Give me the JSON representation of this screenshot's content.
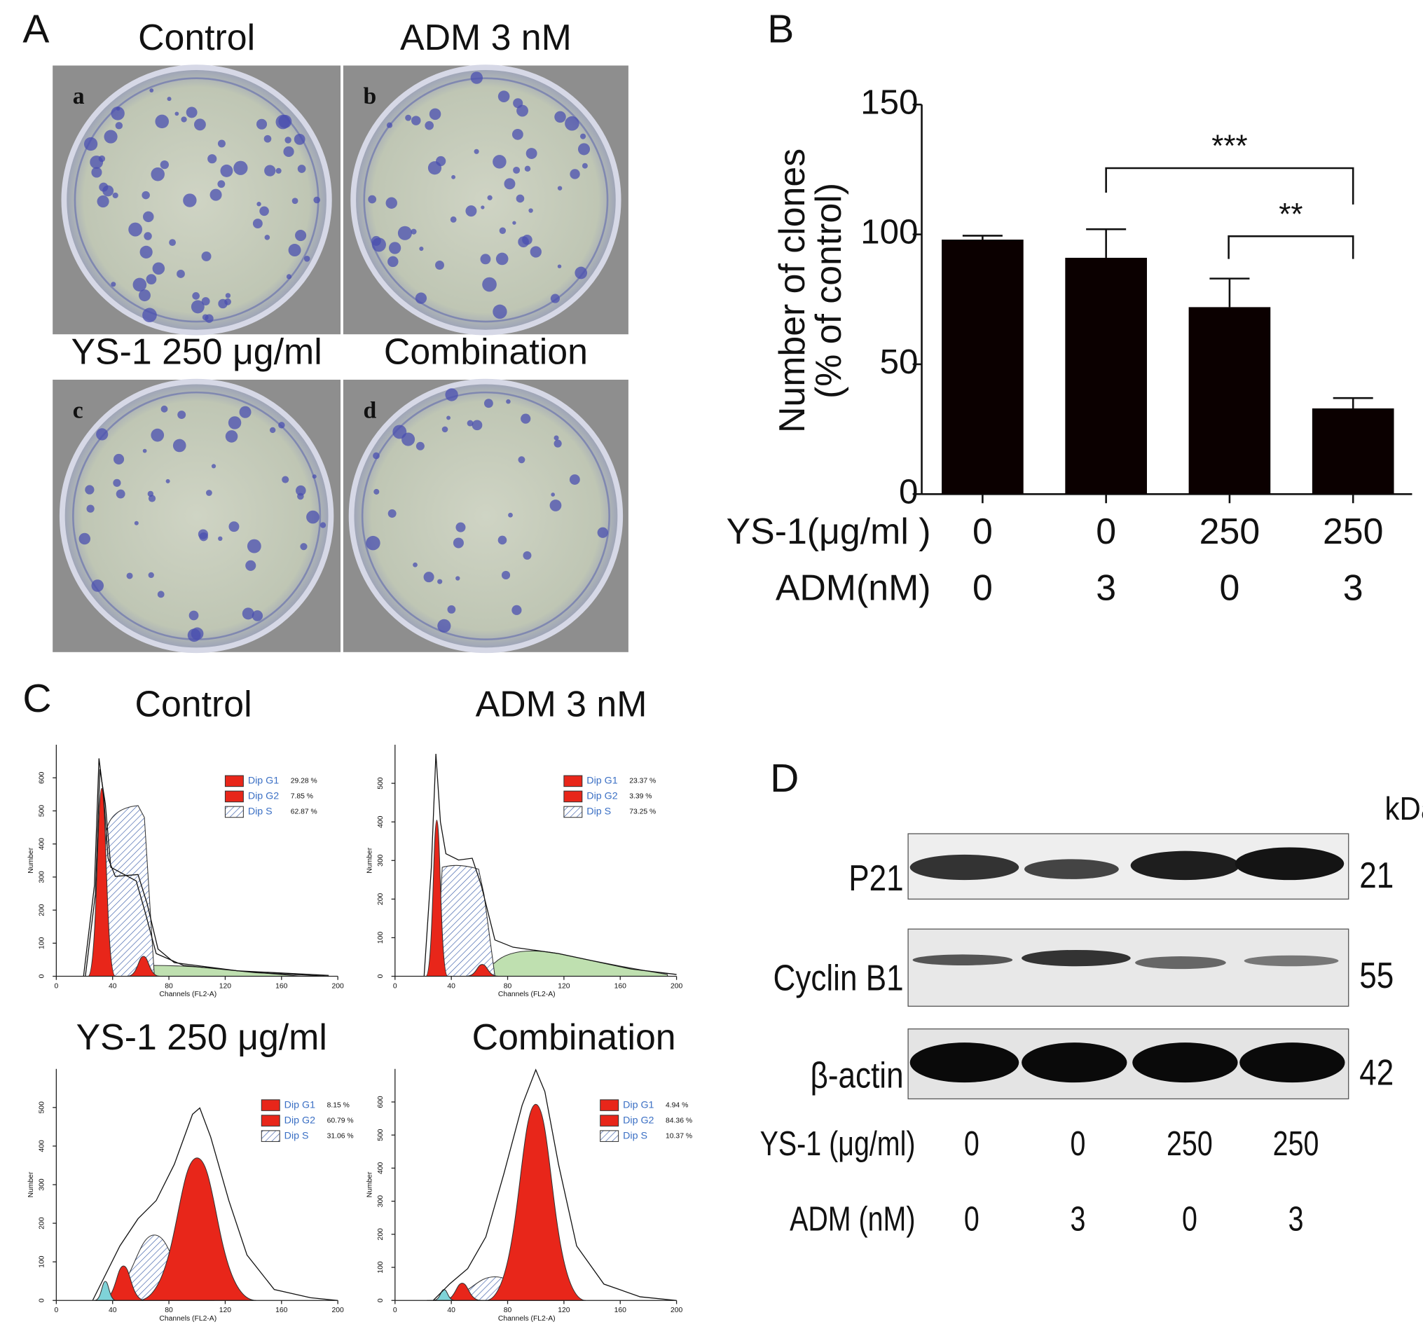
{
  "panel_labels": [
    "A",
    "B",
    "C",
    "D"
  ],
  "colony": {
    "titles": [
      "Control",
      "ADM 3 nM",
      "YS-1 250 μg/ml",
      "Combination"
    ],
    "letters": [
      "a",
      "b",
      "c",
      "d"
    ]
  },
  "chart_data": [
    {
      "type": "bar",
      "ylabel": [
        "Number of clones",
        "(% of control)"
      ],
      "category_rows": [
        {
          "name": "YS-1(μg/ml )",
          "labels": [
            "0",
            "0",
            "250",
            "250"
          ]
        },
        {
          "name": "ADM(nM)",
          "labels": [
            "0",
            "3",
            "0",
            "3"
          ]
        }
      ],
      "values": [
        98,
        91,
        72,
        33
      ],
      "errors": [
        1.5,
        11,
        11,
        4
      ],
      "color": "#0b0000",
      "ylim": [
        0,
        150
      ],
      "yticks": [
        0,
        50,
        100,
        150
      ],
      "annotations": [
        "***",
        "**"
      ]
    },
    {
      "type": "flow-histogram",
      "title": "Control",
      "xlabel": "Channels (FL2-A)",
      "ylabel": "Number",
      "xlim": [
        0,
        200
      ],
      "xticks": [
        0,
        40,
        80,
        120,
        160,
        200
      ],
      "ylim": [
        0,
        700
      ],
      "yticks": [
        0,
        100,
        200,
        300,
        400,
        500,
        600
      ],
      "series": [
        {
          "name": "Dip G1",
          "color": "#e8261a",
          "label": "29.28 %"
        },
        {
          "name": "Dip G2",
          "color": "#e8261a",
          "label": "7.85 %"
        },
        {
          "name": "Dip S",
          "color": "#3a5da8",
          "hatched": true,
          "label": "62.87 %"
        }
      ]
    },
    {
      "type": "flow-histogram",
      "title": "ADM 3 nM",
      "xlabel": "Channels (FL2-A)",
      "ylabel": "Number",
      "xlim": [
        0,
        200
      ],
      "xticks": [
        0,
        40,
        80,
        120,
        160,
        200
      ],
      "ylim": [
        0,
        600
      ],
      "yticks": [
        0,
        100,
        200,
        300,
        400,
        500
      ],
      "series": [
        {
          "name": "Dip G1",
          "color": "#e8261a",
          "label": "23.37 %"
        },
        {
          "name": "Dip G2",
          "color": "#e8261a",
          "label": "3.39 %"
        },
        {
          "name": "Dip S",
          "color": "#3a5da8",
          "hatched": true,
          "label": "73.25 %"
        }
      ]
    },
    {
      "type": "flow-histogram",
      "title": "YS-1 250 μg/ml",
      "xlabel": "Channels (FL2-A)",
      "ylabel": "Number",
      "xlim": [
        0,
        200
      ],
      "xticks": [
        0,
        40,
        80,
        120,
        160,
        200
      ],
      "ylim": [
        0,
        600
      ],
      "yticks": [
        0,
        100,
        200,
        300,
        400,
        500
      ],
      "series": [
        {
          "name": "Dip G1",
          "color": "#e8261a",
          "label": "8.15 %"
        },
        {
          "name": "Dip G2",
          "color": "#e8261a",
          "label": "60.79 %"
        },
        {
          "name": "Dip S",
          "color": "#3a5da8",
          "hatched": true,
          "label": "31.06 %"
        }
      ]
    },
    {
      "type": "flow-histogram",
      "title": "Combination",
      "xlabel": "Channels (FL2-A)",
      "ylabel": "Number",
      "xlim": [
        0,
        200
      ],
      "xticks": [
        0,
        40,
        80,
        120,
        160,
        200
      ],
      "ylim": [
        0,
        700
      ],
      "yticks": [
        0,
        100,
        200,
        300,
        400,
        500,
        600
      ],
      "series": [
        {
          "name": "Dip G1",
          "color": "#e8261a",
          "label": "4.94 %"
        },
        {
          "name": "Dip G2",
          "color": "#e8261a",
          "label": "84.36 %"
        },
        {
          "name": "Dip S",
          "color": "#3a5da8",
          "hatched": true,
          "label": "10.37 %"
        }
      ]
    }
  ],
  "western": {
    "unit": "kDa",
    "proteins": [
      {
        "name": "P21",
        "kda": "21"
      },
      {
        "name": "Cyclin B1",
        "kda": "55"
      },
      {
        "name": "β-actin",
        "kda": "42"
      }
    ],
    "rows": [
      {
        "name": "YS-1 (μg/ml)",
        "labels": [
          "0",
          "0",
          "250",
          "250"
        ]
      },
      {
        "name": "ADM (nM)",
        "labels": [
          "0",
          "3",
          "0",
          "3"
        ]
      }
    ]
  }
}
